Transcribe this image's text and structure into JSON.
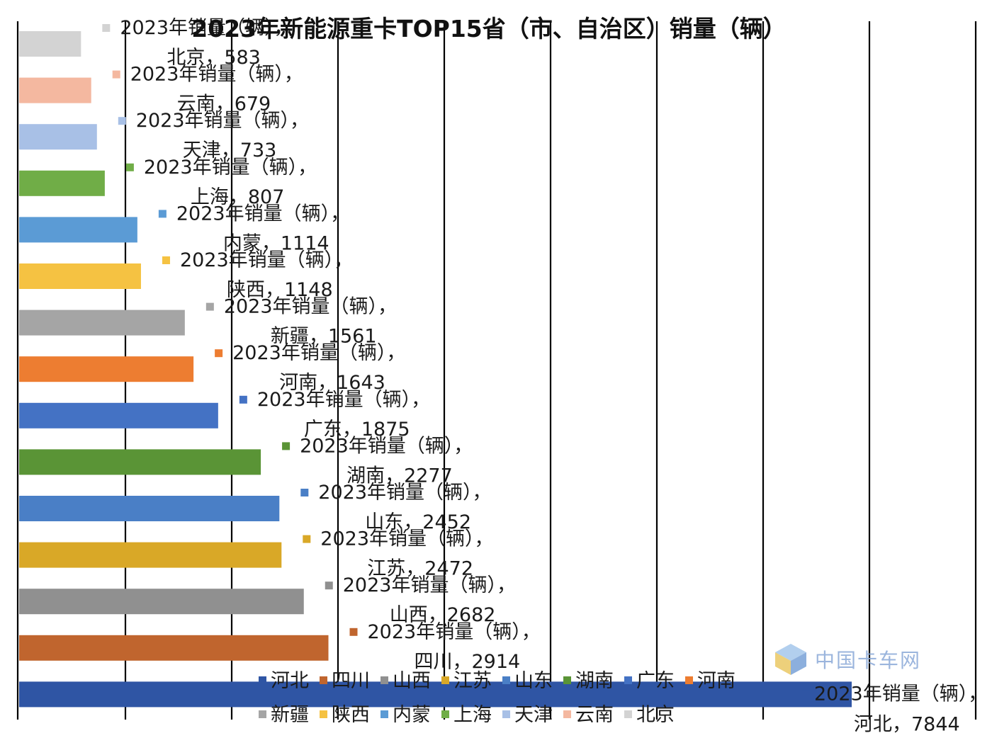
{
  "chart_data": {
    "type": "bar",
    "orientation": "horizontal",
    "title": "2023年新能源重卡TOP15省（市、自治区）销量（辆）",
    "series_name": "2023年销量（辆）",
    "categories": [
      "北京",
      "云南",
      "天津",
      "上海",
      "内蒙",
      "陕西",
      "新疆",
      "河南",
      "广东",
      "湖南",
      "山东",
      "江苏",
      "山西",
      "四川",
      "河北"
    ],
    "values": [
      583,
      679,
      733,
      807,
      1114,
      1148,
      1561,
      1643,
      1875,
      2277,
      2452,
      2472,
      2682,
      2914,
      7844
    ],
    "colors": [
      "#d3d3d3",
      "#f4b8a0",
      "#a8c0e6",
      "#70ad47",
      "#5b9bd5",
      "#f5c242",
      "#a5a5a5",
      "#ed7d31",
      "#4472c4",
      "#5a9436",
      "#4a7fc6",
      "#d9a827",
      "#909090",
      "#c0652e",
      "#2f55a4"
    ],
    "label_separator": "，",
    "legend": {
      "placement": "bottom",
      "row1": [
        "河北",
        "四川",
        "山西",
        "江苏",
        "山东",
        "湖南",
        "广东",
        "河南"
      ],
      "row2": [
        "新疆",
        "陕西",
        "内蒙",
        "上海",
        "天津",
        "云南",
        "北京"
      ],
      "row1_colors": [
        "#2f55a4",
        "#c0652e",
        "#909090",
        "#d9a827",
        "#4a7fc6",
        "#5a9436",
        "#4472c4",
        "#ed7d31"
      ],
      "row2_colors": [
        "#a5a5a5",
        "#f5c242",
        "#5b9bd5",
        "#70ad47",
        "#a8c0e6",
        "#f4b8a0",
        "#d3d3d3"
      ]
    },
    "grid": true,
    "xlim": [
      0,
      9000
    ],
    "watermark": "中国卡车网"
  }
}
